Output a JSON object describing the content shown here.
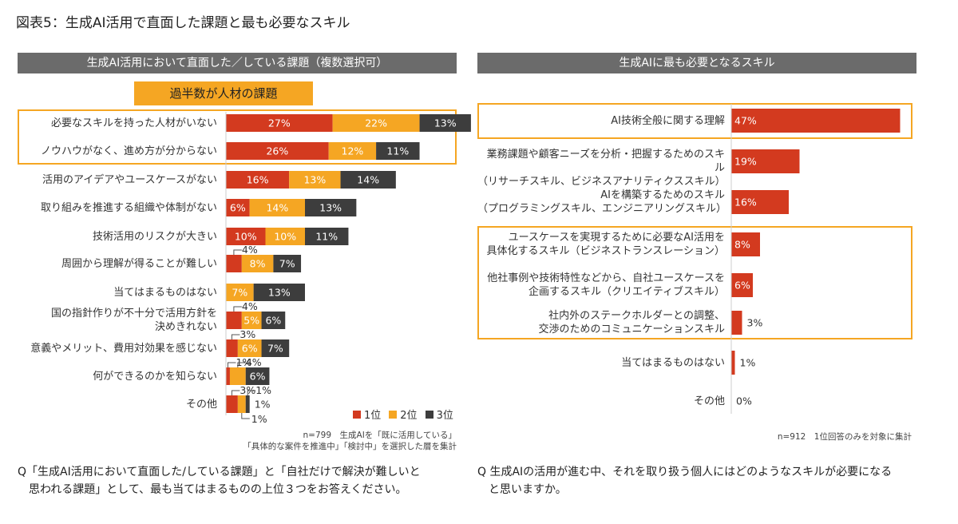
{
  "figure_title": "図表5：生成AI活用で直面した課題と最も必要なスキル",
  "colors": {
    "rank1": "#d33a1f",
    "rank2": "#f5a623",
    "rank3": "#3d3d3d",
    "header_bg": "#6b6b6b",
    "highlight": "#f5a623"
  },
  "left": {
    "header": "生成AI活用において直面した／している課題（複数選択可）",
    "callout": "過半数が人材の課題",
    "legend": [
      "1位",
      "2位",
      "3位"
    ],
    "note_line1": "n=799　生成AIを「既に活用している」",
    "note_line2": "「具体的な案件を推進中」「検討中」を選択した層を集計",
    "question_line1": "Q「生成AI活用において直面した/している課題」と「自社だけで解決が難しいと",
    "question_line2": "思われる課題」として、最も当てはまるものの上位３つをお答えください。"
  },
  "right": {
    "header": "生成AIに最も必要となるスキル",
    "note": "n=912　1位回答のみを対象に集計",
    "question_line1": "Q 生成AIの活用が進む中、それを取り扱う個人にはどのようなスキルが必要になる",
    "question_line2": "と思いますか。"
  },
  "chart_data": [
    {
      "type": "bar",
      "orientation": "horizontal",
      "stacked": true,
      "unit": "%",
      "categories": [
        [
          "必要なスキルを持った人材がいない"
        ],
        [
          "ノウハウがなく、進め方が分からない"
        ],
        [
          "活用のアイデアやユースケースがない"
        ],
        [
          "取り組みを推進する組織や体制がない"
        ],
        [
          "技術活用のリスクが大きい"
        ],
        [
          "周囲から理解が得ることが難しい"
        ],
        [
          "当てはまるものはない"
        ],
        [
          "国の指針作りが不十分で活用方針を",
          "決めきれない"
        ],
        [
          "意義やメリット、費用対効果を感じない"
        ],
        [
          "何ができるのかを知らない"
        ],
        [
          "その他"
        ]
      ],
      "series": [
        {
          "name": "1位",
          "values": [
            27,
            26,
            16,
            6,
            10,
            4,
            0,
            4,
            3,
            1,
            3
          ]
        },
        {
          "name": "2位",
          "values": [
            22,
            12,
            13,
            14,
            10,
            8,
            7,
            5,
            6,
            4,
            2
          ]
        },
        {
          "name": "3位",
          "values": [
            13,
            11,
            14,
            13,
            11,
            7,
            13,
            6,
            7,
            6,
            1
          ]
        }
      ],
      "labels": [
        [
          "27%",
          "22%",
          "13%"
        ],
        [
          "26%",
          "12%",
          "11%"
        ],
        [
          "16%",
          "13%",
          "14%"
        ],
        [
          "6%",
          "14%",
          "13%"
        ],
        [
          "10%",
          "10%",
          "11%"
        ],
        [
          "4%",
          "8%",
          "7%"
        ],
        [
          "",
          "7%",
          "13%"
        ],
        [
          "4%",
          "5%",
          "6%"
        ],
        [
          "3%",
          "6%",
          "7%"
        ],
        [
          "1%",
          "4%",
          "6%"
        ],
        [
          "3%",
          "",
          "1%"
        ]
      ],
      "extra_labels": [
        {
          "row": 10,
          "text": "1%"
        }
      ],
      "legend": "bottom-right"
    },
    {
      "type": "bar",
      "orientation": "horizontal",
      "unit": "%",
      "categories": [
        [
          "AI技術全般に関する理解"
        ],
        [
          "業務課題や顧客ニーズを分析・把握するためのスキル",
          "（リサーチスキル、ビジネスアナリティクススキル）"
        ],
        [
          "AIを構築するためのスキル",
          "（プログラミングスキル、エンジニアリングスキル）"
        ],
        [
          "ユースケースを実現するために必要なAI活用を",
          "具体化するスキル（ビジネストランスレーション）"
        ],
        [
          "他社事例や技術特性などから、自社ユースケースを",
          "企画するスキル（クリエイティブスキル）"
        ],
        [
          "社内外のステークホルダーとの調整、",
          "交渉のためのコミュニケーションスキル"
        ],
        [
          "当てはまるものはない"
        ],
        [
          "その他"
        ]
      ],
      "values": [
        47,
        19,
        16,
        8,
        6,
        3,
        1,
        0
      ],
      "labels": [
        "47%",
        "19%",
        "16%",
        "8%",
        "6%",
        "3%",
        "1%",
        "0%"
      ]
    }
  ]
}
